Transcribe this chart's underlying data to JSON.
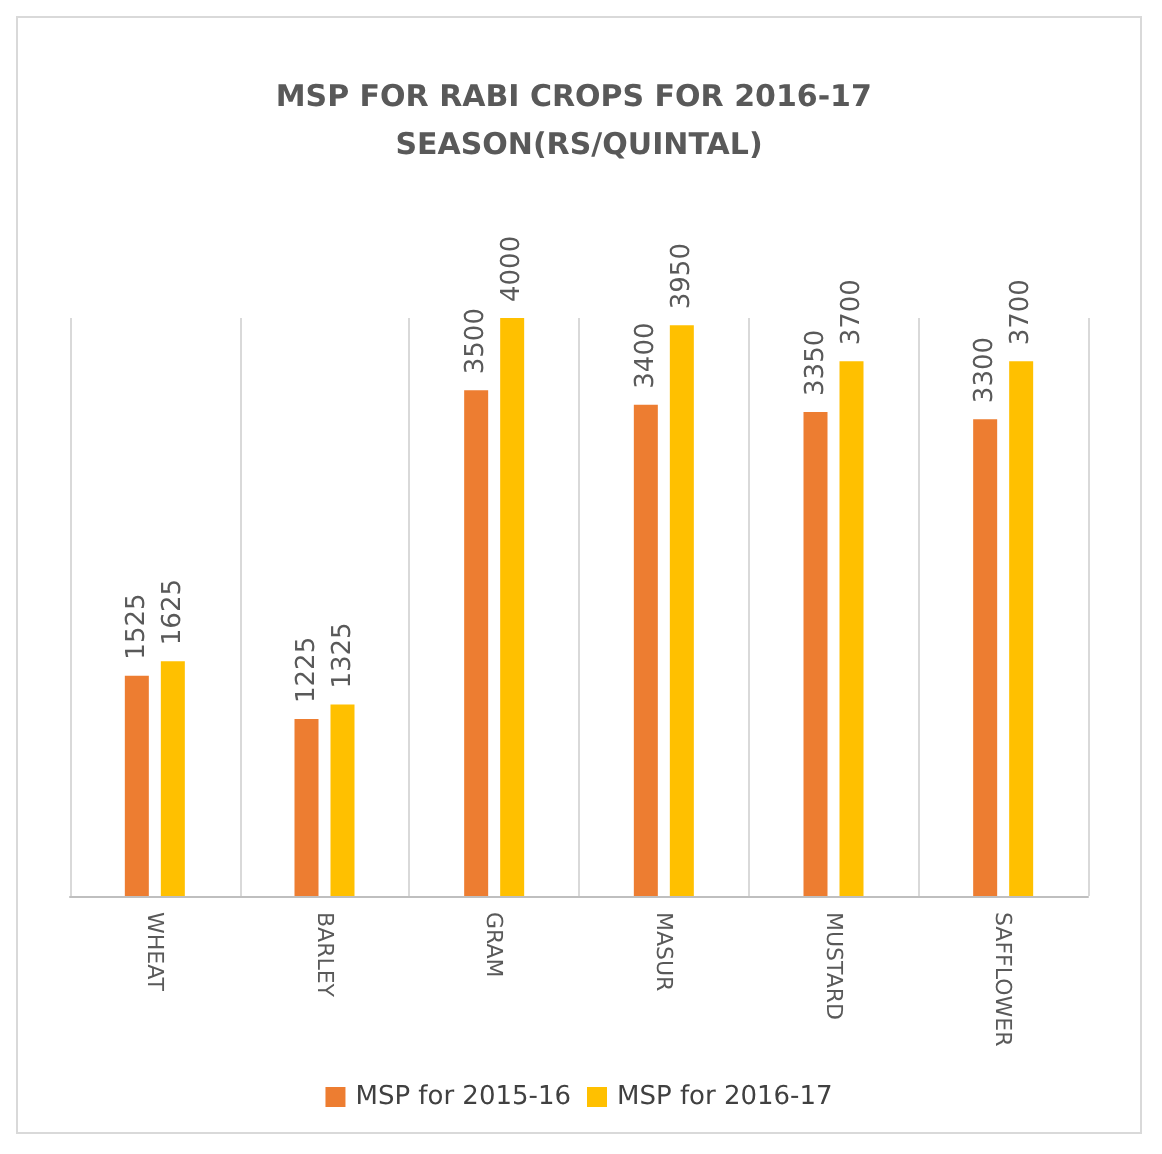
{
  "chart_data": {
    "type": "bar",
    "title": "MSP FOR RABI CROPS FOR 2016-17 SEASON(RS/QUINTAL)",
    "categories": [
      "WHEAT",
      "BARLEY",
      "GRAM",
      "MASUR",
      "MUSTARD",
      "SAFFLOWER"
    ],
    "series": [
      {
        "name": "MSP for 2015-16",
        "color": "#ed7d31",
        "values": [
          1525,
          1225,
          3500,
          3400,
          3350,
          3300
        ]
      },
      {
        "name": "MSP for 2016-17",
        "color": "#ffc000",
        "values": [
          1625,
          1325,
          4000,
          3950,
          3700,
          3700
        ]
      }
    ],
    "data_labels": true,
    "grid": "x",
    "legend": "bottom"
  }
}
